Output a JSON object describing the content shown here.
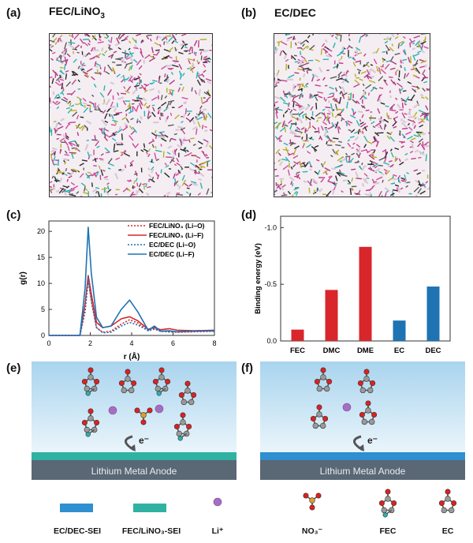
{
  "panels": {
    "a": {
      "label": "(a)",
      "title_main": "FEC/LiNO",
      "title_sub": "3"
    },
    "b": {
      "label": "(b)",
      "title": "EC/DEC"
    },
    "c": {
      "label": "(c)"
    },
    "d": {
      "label": "(d)"
    },
    "e": {
      "label": "(e)",
      "anode_text": "Lithium Metal Anode",
      "electron": "e⁻"
    },
    "f": {
      "label": "(f)",
      "anode_text": "Lithium Metal Anode",
      "electron": "e⁻"
    }
  },
  "colors": {
    "fec_red": "#d8262b",
    "ec_blue": "#1e73b3",
    "sei_ec": "#2f8fd0",
    "sei_fec": "#2fb2a2",
    "li_purple": "#a66ec2",
    "anode": "#5a6775",
    "electrolyte": "#bfe0f3"
  },
  "legend": {
    "items": [
      "EC/DEC-SEI",
      "FEC/LiNO₃-SEI",
      "Li⁺",
      "NO₃⁻",
      "FEC",
      "EC"
    ]
  },
  "chart_data": [
    {
      "type": "line",
      "xlabel": "r (Å)",
      "ylabel": "g(r)",
      "xlim": [
        0,
        8
      ],
      "ylim": [
        0,
        22
      ],
      "xticks": [
        0,
        2,
        4,
        6,
        8
      ],
      "yticks": [
        0,
        5,
        10,
        15,
        20
      ],
      "legend_position": "top-right",
      "series": [
        {
          "name": "FEC/LiNO₃ (Li–O)",
          "color": "#d8262b",
          "dash": true,
          "x": [
            0,
            1.5,
            1.75,
            1.9,
            2.05,
            2.3,
            2.6,
            3.0,
            3.5,
            3.9,
            4.3,
            4.8,
            5.1,
            5.4,
            5.8,
            6.2,
            7.0,
            8.0
          ],
          "y": [
            0,
            0,
            4.5,
            10.5,
            7.0,
            1.5,
            0.6,
            0.8,
            2.2,
            3.0,
            2.4,
            0.9,
            1.2,
            0.8,
            0.7,
            0.6,
            0.7,
            0.8
          ]
        },
        {
          "name": "FEC/LiNO₃ (Li–F)",
          "color": "#d8262b",
          "dash": false,
          "x": [
            0,
            1.5,
            1.75,
            1.9,
            2.05,
            2.3,
            2.6,
            3.0,
            3.5,
            3.9,
            4.3,
            4.8,
            5.1,
            5.4,
            5.8,
            6.2,
            7.0,
            8.0
          ],
          "y": [
            0,
            0,
            6.0,
            11.5,
            8.0,
            2.5,
            1.5,
            1.8,
            3.2,
            3.6,
            2.8,
            1.2,
            1.5,
            1.1,
            1.3,
            1.0,
            0.9,
            1.0
          ]
        },
        {
          "name": "EC/DEC (Li–O)",
          "color": "#1e73b3",
          "dash": true,
          "x": [
            0,
            1.5,
            1.75,
            1.9,
            2.05,
            2.3,
            2.6,
            3.0,
            3.5,
            3.9,
            4.3,
            4.8,
            5.1,
            5.4,
            5.8,
            6.2,
            7.0,
            8.0
          ],
          "y": [
            0,
            0,
            5.0,
            11.0,
            6.5,
            1.5,
            0.5,
            0.6,
            1.8,
            2.5,
            2.0,
            0.9,
            1.3,
            0.8,
            0.7,
            0.7,
            0.8,
            0.8
          ]
        },
        {
          "name": "EC/DEC (Li–F)",
          "color": "#1e73b3",
          "dash": false,
          "x": [
            0,
            1.5,
            1.75,
            1.9,
            2.05,
            2.3,
            2.6,
            3.0,
            3.5,
            3.9,
            4.3,
            4.8,
            5.1,
            5.4,
            5.8,
            6.2,
            7.0,
            8.0
          ],
          "y": [
            0,
            0,
            9.0,
            20.8,
            12.0,
            3.5,
            1.5,
            1.8,
            5.0,
            6.8,
            4.5,
            1.0,
            1.8,
            0.8,
            0.9,
            0.7,
            0.8,
            0.9
          ]
        }
      ]
    },
    {
      "type": "bar",
      "ylabel": "Binding energy (eV)",
      "categories": [
        "FEC",
        "DMC",
        "DME",
        "EC",
        "DEC"
      ],
      "values": [
        -0.1,
        -0.45,
        -0.83,
        -0.18,
        -0.48
      ],
      "bar_colors": [
        "#d8262b",
        "#d8262b",
        "#d8262b",
        "#1e73b3",
        "#1e73b3"
      ],
      "ylim": [
        0,
        -1.1
      ],
      "yticks": [
        0.0,
        -0.5,
        -1.0
      ],
      "ytick_labels": [
        "0.0",
        "-0.5",
        "-1.0"
      ]
    }
  ]
}
